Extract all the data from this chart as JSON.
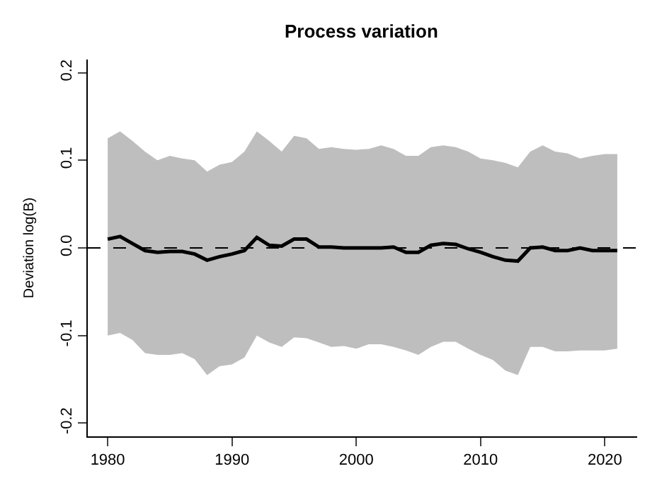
{
  "chart_data": {
    "type": "line",
    "title": "Process variation",
    "ylabel": "Deviation log(B)",
    "x": [
      1980,
      1981,
      1982,
      1983,
      1984,
      1985,
      1986,
      1987,
      1988,
      1989,
      1990,
      1991,
      1992,
      1993,
      1994,
      1995,
      1996,
      1997,
      1998,
      1999,
      2000,
      2001,
      2002,
      2003,
      2004,
      2005,
      2006,
      2007,
      2008,
      2009,
      2010,
      2011,
      2012,
      2013,
      2014,
      2015,
      2016,
      2017,
      2018,
      2019,
      2020,
      2021
    ],
    "series": [
      {
        "color": "#000000",
        "values": [
          0.01,
          0.013,
          0.005,
          -0.003,
          -0.005,
          -0.004,
          -0.004,
          -0.007,
          -0.014,
          -0.01,
          -0.007,
          -0.003,
          0.012,
          0.003,
          0.002,
          0.01,
          0.01,
          0.001,
          0.001,
          0,
          0,
          0,
          0,
          0.001,
          -0.005,
          -0.005,
          0.003,
          0.005,
          0.004,
          -0.001,
          -0.005,
          -0.01,
          -0.014,
          -0.015,
          0,
          0.001,
          -0.003,
          -0.003,
          0,
          -0.003,
          -0.003,
          -0.003
        ],
        "upper": [
          0.125,
          0.133,
          0.122,
          0.11,
          0.1,
          0.105,
          0.102,
          0.1,
          0.087,
          0.095,
          0.098,
          0.11,
          0.133,
          0.122,
          0.11,
          0.128,
          0.125,
          0.113,
          0.115,
          0.113,
          0.112,
          0.113,
          0.117,
          0.113,
          0.105,
          0.105,
          0.115,
          0.117,
          0.115,
          0.11,
          0.102,
          0.1,
          0.097,
          0.092,
          0.11,
          0.117,
          0.11,
          0.108,
          0.102,
          0.105,
          0.107,
          0.107
        ],
        "lower": [
          -0.1,
          -0.097,
          -0.105,
          -0.12,
          -0.122,
          -0.122,
          -0.12,
          -0.127,
          -0.145,
          -0.135,
          -0.133,
          -0.125,
          -0.1,
          -0.108,
          -0.113,
          -0.102,
          -0.103,
          -0.108,
          -0.113,
          -0.112,
          -0.115,
          -0.11,
          -0.11,
          -0.113,
          -0.117,
          -0.122,
          -0.113,
          -0.107,
          -0.107,
          -0.115,
          -0.122,
          -0.128,
          -0.14,
          -0.145,
          -0.113,
          -0.113,
          -0.118,
          -0.118,
          -0.117,
          -0.117,
          -0.117,
          -0.115
        ]
      }
    ],
    "xlim": [
      1978.4,
      2022.6
    ],
    "xticks": [
      1980,
      1990,
      2000,
      2010,
      2020
    ],
    "ylim": [
      -0.215,
      0.215
    ],
    "yticks": [
      {
        "value": -0.2,
        "label": "-0.2"
      },
      {
        "value": -0.1,
        "label": "-0.1"
      },
      {
        "value": 0,
        "label": "0.0"
      },
      {
        "value": 0.1,
        "label": "0.1"
      },
      {
        "value": 0.2,
        "label": "0.2"
      }
    ],
    "ref_lines": [
      {
        "axis": "y",
        "value": 0,
        "line_style": "dashed",
        "color": "#000000"
      }
    ],
    "marker": "none",
    "line_style": "solid"
  }
}
